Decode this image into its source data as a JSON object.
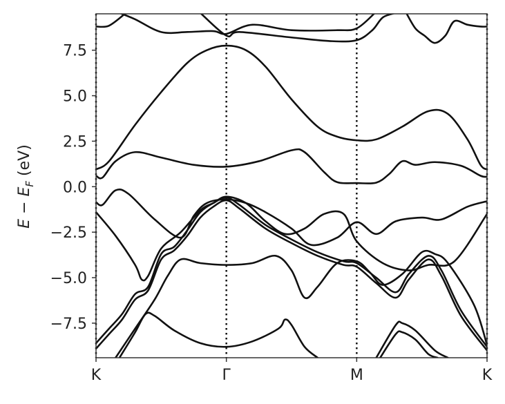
{
  "chart_data": {
    "type": "line",
    "title": "",
    "ylabel": "E − E_F (eV)",
    "ylabel_parts": {
      "e": "E",
      "minus": " − ",
      "ef": "E",
      "sub": "F",
      "unit": " (eV)"
    },
    "ylim": [
      -9.4,
      9.5
    ],
    "xlim": [
      0,
      3
    ],
    "x_ticks": [
      {
        "x": 0,
        "label": "K"
      },
      {
        "x": 1,
        "label": "Γ"
      },
      {
        "x": 2,
        "label": "M"
      },
      {
        "x": 3,
        "label": "K"
      }
    ],
    "y_ticks": [
      {
        "y": 7.5,
        "label": "7.5"
      },
      {
        "y": 5.0,
        "label": "5.0"
      },
      {
        "y": 2.5,
        "label": "2.5"
      },
      {
        "y": 0.0,
        "label": "0.0"
      },
      {
        "y": -2.5,
        "label": "−2.5"
      },
      {
        "y": -5.0,
        "label": "−5.0"
      },
      {
        "y": -7.5,
        "label": "−7.5"
      }
    ],
    "vlines": [
      0,
      1,
      2,
      3
    ],
    "grid": false,
    "line_color": "#111111",
    "series": [
      {
        "points": [
          [
            0,
            8.8
          ],
          [
            0.1,
            8.85
          ],
          [
            0.23,
            9.55
          ]
        ]
      },
      {
        "points": [
          [
            0.18,
            9.55
          ],
          [
            0.3,
            9.2
          ],
          [
            0.5,
            8.5
          ],
          [
            0.7,
            8.5
          ],
          [
            0.9,
            8.55
          ],
          [
            1.0,
            8.4
          ],
          [
            1.2,
            8.9
          ],
          [
            1.5,
            8.6
          ],
          [
            1.85,
            8.6
          ],
          [
            2.0,
            8.7
          ],
          [
            2.14,
            9.55
          ]
        ]
      },
      {
        "points": [
          [
            0.8,
            9.55
          ],
          [
            1.0,
            8.3
          ],
          [
            1.1,
            8.5
          ],
          [
            1.5,
            8.2
          ],
          [
            1.8,
            8.0
          ],
          [
            2.0,
            8.05
          ],
          [
            2.12,
            8.6
          ],
          [
            2.2,
            9.3
          ],
          [
            2.3,
            9.55
          ]
        ]
      },
      {
        "points": [
          [
            2.38,
            9.55
          ],
          [
            2.45,
            8.7
          ],
          [
            2.52,
            8.3
          ],
          [
            2.6,
            7.9
          ],
          [
            2.68,
            8.3
          ],
          [
            2.75,
            9.1
          ],
          [
            2.85,
            8.9
          ],
          [
            2.95,
            8.8
          ],
          [
            3.0,
            8.8
          ]
        ]
      },
      {
        "points": [
          [
            0,
            0.95
          ],
          [
            0.1,
            1.4
          ],
          [
            0.3,
            3.4
          ],
          [
            0.5,
            5.2
          ],
          [
            0.7,
            6.8
          ],
          [
            0.85,
            7.5
          ],
          [
            1.0,
            7.75
          ],
          [
            1.15,
            7.5
          ],
          [
            1.3,
            6.6
          ],
          [
            1.5,
            4.8
          ],
          [
            1.7,
            3.3
          ],
          [
            1.85,
            2.75
          ],
          [
            2.0,
            2.55
          ],
          [
            2.15,
            2.6
          ],
          [
            2.35,
            3.3
          ],
          [
            2.55,
            4.15
          ],
          [
            2.7,
            4.0
          ],
          [
            2.85,
            2.6
          ],
          [
            2.95,
            1.2
          ],
          [
            3.0,
            0.95
          ]
        ]
      },
      {
        "points": [
          [
            0,
            0.6
          ],
          [
            0.05,
            0.5
          ],
          [
            0.15,
            1.4
          ],
          [
            0.3,
            1.9
          ],
          [
            0.5,
            1.6
          ],
          [
            0.75,
            1.2
          ],
          [
            1.0,
            1.1
          ],
          [
            1.25,
            1.4
          ],
          [
            1.5,
            2.0
          ],
          [
            1.6,
            1.9
          ],
          [
            1.75,
            0.8
          ],
          [
            1.85,
            0.25
          ],
          [
            2.0,
            0.2
          ],
          [
            2.15,
            0.22
          ],
          [
            2.25,
            0.7
          ],
          [
            2.35,
            1.4
          ],
          [
            2.45,
            1.2
          ],
          [
            2.6,
            1.35
          ],
          [
            2.8,
            1.15
          ],
          [
            2.95,
            0.6
          ],
          [
            3.0,
            0.55
          ]
        ]
      },
      {
        "points": [
          [
            0,
            -0.85
          ],
          [
            0.05,
            -1.0
          ],
          [
            0.15,
            -0.2
          ],
          [
            0.25,
            -0.4
          ],
          [
            0.45,
            -1.8
          ],
          [
            0.65,
            -2.8
          ],
          [
            0.75,
            -1.6
          ],
          [
            0.85,
            -0.9
          ],
          [
            1.0,
            -0.7
          ],
          [
            1.15,
            -0.9
          ],
          [
            1.3,
            -1.4
          ],
          [
            1.5,
            -2.3
          ],
          [
            1.65,
            -3.2
          ],
          [
            1.85,
            -2.8
          ],
          [
            2.0,
            -1.95
          ],
          [
            2.15,
            -2.6
          ],
          [
            2.3,
            -1.9
          ],
          [
            2.5,
            -1.7
          ],
          [
            2.65,
            -1.8
          ],
          [
            2.85,
            -1.1
          ],
          [
            3.0,
            -0.8
          ]
        ]
      },
      {
        "points": [
          [
            0,
            -1.4
          ],
          [
            0.15,
            -2.7
          ],
          [
            0.3,
            -4.3
          ],
          [
            0.35,
            -5.1
          ],
          [
            0.4,
            -4.9
          ],
          [
            0.5,
            -3.4
          ],
          [
            0.65,
            -2.5
          ],
          [
            0.8,
            -1.3
          ],
          [
            0.9,
            -0.9
          ],
          [
            1.0,
            -0.55
          ],
          [
            1.15,
            -0.9
          ],
          [
            1.3,
            -1.9
          ],
          [
            1.45,
            -2.6
          ],
          [
            1.6,
            -2.3
          ],
          [
            1.75,
            -1.5
          ],
          [
            1.9,
            -1.5
          ],
          [
            2.0,
            -3.0
          ],
          [
            2.2,
            -4.2
          ],
          [
            2.4,
            -4.6
          ],
          [
            2.55,
            -4.3
          ],
          [
            2.75,
            -4.1
          ],
          [
            3.0,
            -1.5
          ]
        ]
      },
      {
        "points": [
          [
            0,
            -8.6
          ],
          [
            0.1,
            -7.8
          ],
          [
            0.2,
            -7.0
          ],
          [
            0.3,
            -5.9
          ],
          [
            0.4,
            -5.5
          ],
          [
            0.5,
            -3.7
          ],
          [
            0.6,
            -3.3
          ],
          [
            0.7,
            -2.4
          ],
          [
            0.8,
            -1.4
          ],
          [
            0.9,
            -0.9
          ],
          [
            1.0,
            -0.6
          ],
          [
            1.1,
            -1.0
          ],
          [
            1.3,
            -2.1
          ],
          [
            1.5,
            -2.9
          ],
          [
            1.7,
            -3.6
          ],
          [
            1.9,
            -4.1
          ],
          [
            2.0,
            -4.2
          ],
          [
            2.15,
            -5.0
          ],
          [
            2.3,
            -5.8
          ],
          [
            2.4,
            -4.8
          ],
          [
            2.55,
            -3.8
          ],
          [
            2.65,
            -4.6
          ],
          [
            2.8,
            -6.8
          ],
          [
            3.0,
            -8.8
          ]
        ]
      },
      {
        "points": [
          [
            0,
            -8.9
          ],
          [
            0.1,
            -8.1
          ],
          [
            0.2,
            -7.3
          ],
          [
            0.3,
            -6.2
          ],
          [
            0.4,
            -5.7
          ],
          [
            0.5,
            -4.0
          ],
          [
            0.6,
            -3.5
          ],
          [
            0.7,
            -2.7
          ],
          [
            0.8,
            -1.7
          ],
          [
            0.9,
            -1.1
          ],
          [
            1.0,
            -0.75
          ],
          [
            1.1,
            -1.2
          ],
          [
            1.3,
            -2.3
          ],
          [
            1.5,
            -3.1
          ],
          [
            1.7,
            -3.8
          ],
          [
            1.9,
            -4.3
          ],
          [
            2.0,
            -4.4
          ],
          [
            2.15,
            -5.3
          ],
          [
            2.3,
            -6.1
          ],
          [
            2.4,
            -5.1
          ],
          [
            2.55,
            -4.0
          ],
          [
            2.65,
            -4.9
          ],
          [
            2.8,
            -7.1
          ],
          [
            3.0,
            -9.0
          ]
        ]
      },
      {
        "points": [
          [
            0.15,
            -9.4
          ],
          [
            0.3,
            -7.8
          ],
          [
            0.45,
            -6.2
          ],
          [
            0.55,
            -4.9
          ],
          [
            0.65,
            -4.0
          ],
          [
            0.8,
            -4.2
          ],
          [
            1.0,
            -4.3
          ],
          [
            1.2,
            -4.2
          ],
          [
            1.38,
            -3.8
          ],
          [
            1.5,
            -4.6
          ],
          [
            1.6,
            -6.1
          ],
          [
            1.7,
            -5.5
          ],
          [
            1.85,
            -4.2
          ],
          [
            2.0,
            -4.1
          ],
          [
            2.1,
            -4.7
          ],
          [
            2.2,
            -5.4
          ],
          [
            2.35,
            -4.8
          ],
          [
            2.5,
            -3.6
          ],
          [
            2.6,
            -3.7
          ],
          [
            2.7,
            -4.2
          ],
          [
            2.9,
            -6.5
          ],
          [
            3.0,
            -8.7
          ]
        ]
      },
      {
        "points": [
          [
            0.18,
            -9.4
          ],
          [
            0.3,
            -8.0
          ],
          [
            0.38,
            -7.0
          ],
          [
            0.45,
            -7.1
          ],
          [
            0.6,
            -7.9
          ],
          [
            0.8,
            -8.6
          ],
          [
            1.0,
            -8.8
          ],
          [
            1.2,
            -8.5
          ],
          [
            1.4,
            -7.8
          ],
          [
            1.45,
            -7.3
          ],
          [
            1.5,
            -7.6
          ],
          [
            1.6,
            -8.8
          ],
          [
            1.7,
            -9.4
          ]
        ]
      },
      {
        "points": [
          [
            2.15,
            -9.4
          ],
          [
            2.3,
            -7.6
          ],
          [
            2.35,
            -7.5
          ],
          [
            2.45,
            -7.9
          ],
          [
            2.6,
            -9.0
          ],
          [
            2.7,
            -9.4
          ]
        ]
      },
      {
        "points": [
          [
            2.18,
            -9.4
          ],
          [
            2.3,
            -8.1
          ],
          [
            2.35,
            -8.0
          ],
          [
            2.45,
            -8.4
          ],
          [
            2.55,
            -9.2
          ],
          [
            2.62,
            -9.4
          ]
        ]
      }
    ]
  }
}
